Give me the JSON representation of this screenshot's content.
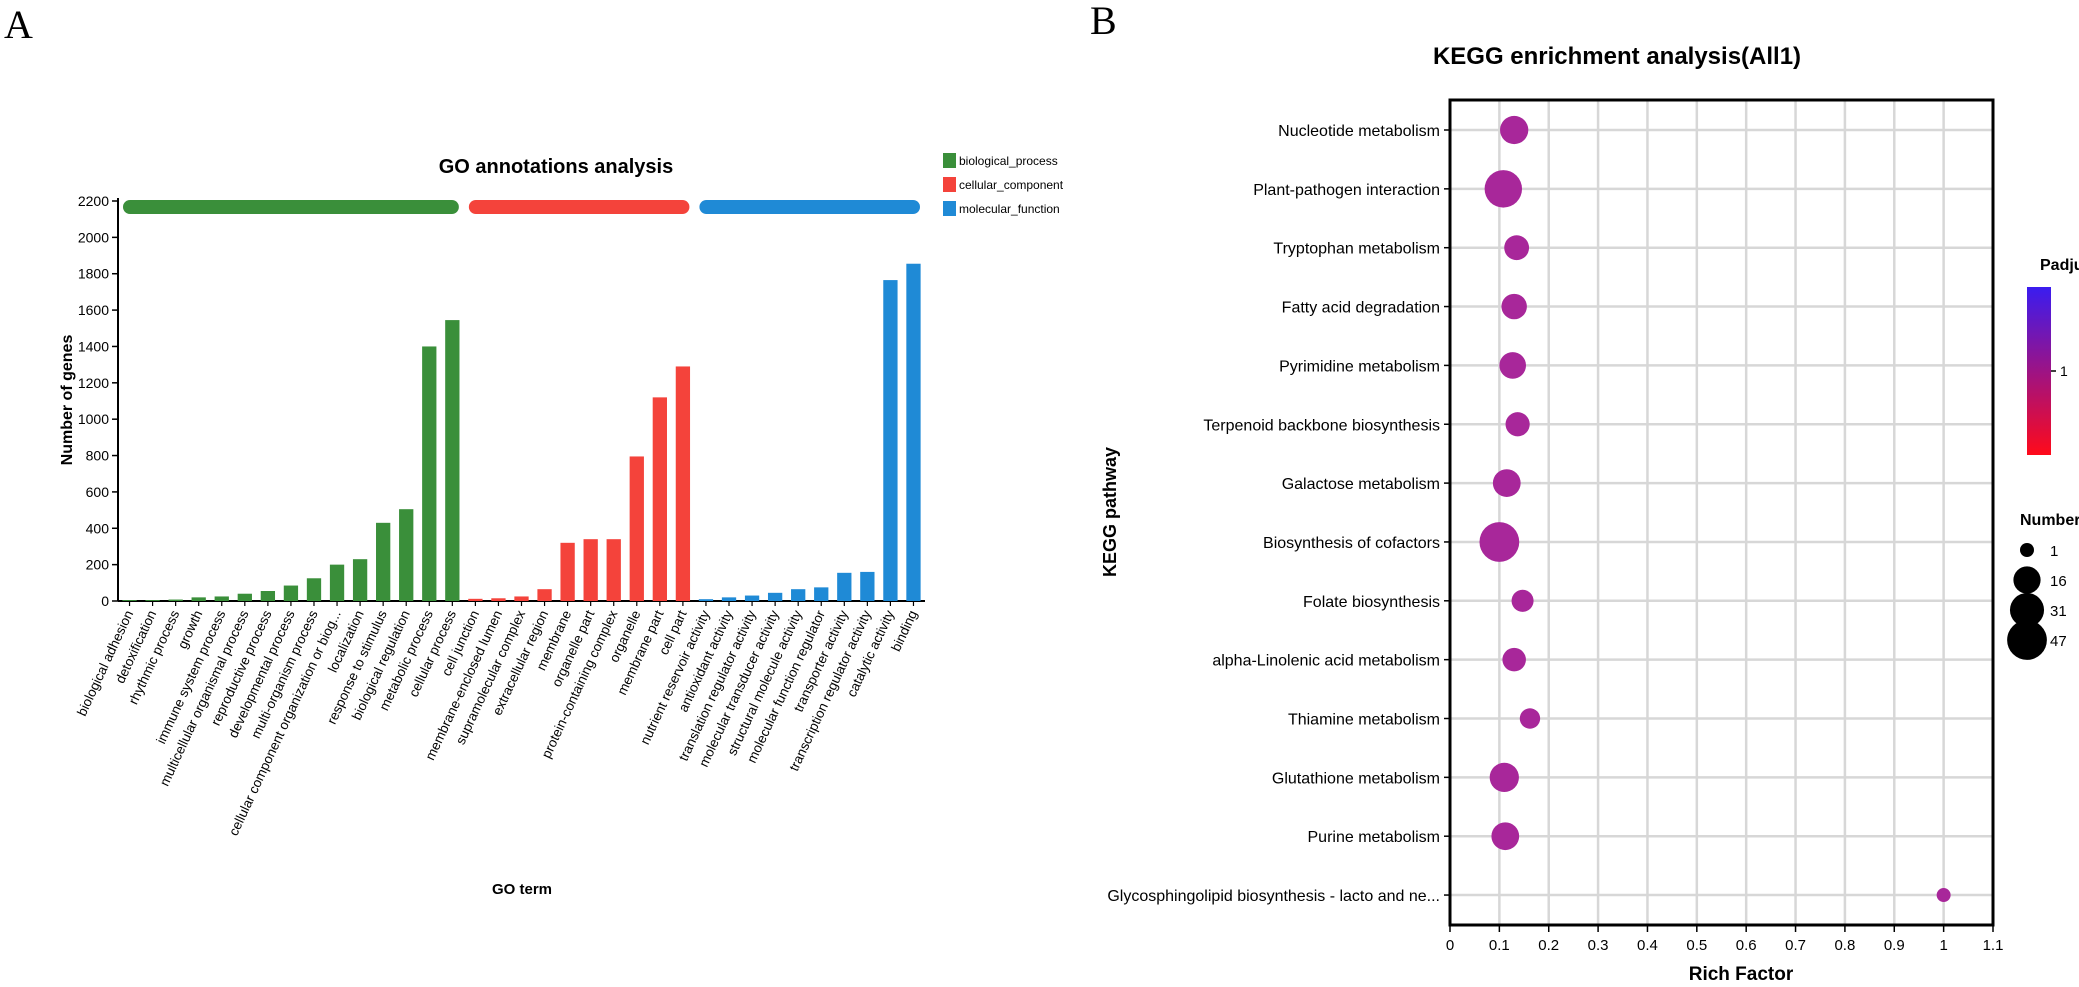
{
  "panel_labels": {
    "a": "A",
    "b": "B"
  },
  "colors": {
    "biological_process": "#3a8f3a",
    "cellular_component": "#f4433b",
    "molecular_function": "#1f8ad6",
    "bubble": "#a8279a",
    "grid": "#d7d7d7",
    "padjust_top": "#3a1cf0",
    "padjust_bottom": "#ff0a1a"
  },
  "chart_data": [
    {
      "type": "bar",
      "title": "GO annotations analysis",
      "xlabel": "GO term",
      "ylabel": "Number of genes",
      "ylim": [
        0,
        2200
      ],
      "yticks": [
        "0",
        "200",
        "400",
        "600",
        "800",
        "1000",
        "1200",
        "1400",
        "1600",
        "1800",
        "2000",
        "2200"
      ],
      "legend": [
        "biological_process",
        "cellular_component",
        "molecular_function"
      ],
      "legend_position": "top-right",
      "categories": [
        {
          "label": "biological adhesion",
          "value": 5,
          "group": 0
        },
        {
          "label": "detoxification",
          "value": 5,
          "group": 0
        },
        {
          "label": "rhythmic process",
          "value": 8,
          "group": 0
        },
        {
          "label": "growth",
          "value": 20,
          "group": 0
        },
        {
          "label": "immune system process",
          "value": 25,
          "group": 0
        },
        {
          "label": "multicellular organismal process",
          "value": 40,
          "group": 0
        },
        {
          "label": "reproductive process",
          "value": 55,
          "group": 0
        },
        {
          "label": "developmental process",
          "value": 85,
          "group": 0
        },
        {
          "label": "multi-organism process",
          "value": 125,
          "group": 0
        },
        {
          "label": "cellular component organization or biog...",
          "value": 200,
          "group": 0
        },
        {
          "label": "localization",
          "value": 230,
          "group": 0
        },
        {
          "label": "response to stimulus",
          "value": 430,
          "group": 0
        },
        {
          "label": "biological regulation",
          "value": 505,
          "group": 0
        },
        {
          "label": "metabolic process",
          "value": 1400,
          "group": 0
        },
        {
          "label": "cellular process",
          "value": 1545,
          "group": 0
        },
        {
          "label": "cell junction",
          "value": 12,
          "group": 1
        },
        {
          "label": "membrane-enclosed lumen",
          "value": 15,
          "group": 1
        },
        {
          "label": "supramolecular complex",
          "value": 25,
          "group": 1
        },
        {
          "label": "extracellular region",
          "value": 65,
          "group": 1
        },
        {
          "label": "membrane",
          "value": 320,
          "group": 1
        },
        {
          "label": "organelle part",
          "value": 340,
          "group": 1
        },
        {
          "label": "protein-containing complex",
          "value": 340,
          "group": 1
        },
        {
          "label": "organelle",
          "value": 795,
          "group": 1
        },
        {
          "label": "membrane part",
          "value": 1120,
          "group": 1
        },
        {
          "label": "cell part",
          "value": 1290,
          "group": 1
        },
        {
          "label": "nutrient reservoir activity",
          "value": 10,
          "group": 2
        },
        {
          "label": "antioxidant activity",
          "value": 20,
          "group": 2
        },
        {
          "label": "translation regulator activity",
          "value": 30,
          "group": 2
        },
        {
          "label": "molecular transducer activity",
          "value": 45,
          "group": 2
        },
        {
          "label": "structural molecule activity",
          "value": 65,
          "group": 2
        },
        {
          "label": "molecular function regulator",
          "value": 75,
          "group": 2
        },
        {
          "label": "transporter activity",
          "value": 155,
          "group": 2
        },
        {
          "label": "transcription regulator activity",
          "value": 160,
          "group": 2
        },
        {
          "label": "catalytic activity",
          "value": 1765,
          "group": 2
        },
        {
          "label": "binding",
          "value": 1855,
          "group": 2
        }
      ]
    },
    {
      "type": "scatter",
      "title": "KEGG enrichment analysis(All1)",
      "xlabel": "Rich Factor",
      "ylabel": "KEGG pathway",
      "xlim": [
        0,
        1.1
      ],
      "xticks": [
        "0",
        "0.1",
        "0.2",
        "0.3",
        "0.4",
        "0.5",
        "0.6",
        "0.7",
        "0.8",
        "0.9",
        "1",
        "1.1"
      ],
      "points": [
        {
          "pathway": "Nucleotide metabolism",
          "rich_factor": 0.13,
          "number": 18
        },
        {
          "pathway": "Plant-pathogen interaction",
          "rich_factor": 0.108,
          "number": 40
        },
        {
          "pathway": "Tryptophan metabolism",
          "rich_factor": 0.135,
          "number": 12
        },
        {
          "pathway": "Fatty acid degradation",
          "rich_factor": 0.13,
          "number": 13
        },
        {
          "pathway": "Pyrimidine metabolism",
          "rich_factor": 0.127,
          "number": 15
        },
        {
          "pathway": "Terpenoid backbone biosynthesis",
          "rich_factor": 0.137,
          "number": 11
        },
        {
          "pathway": "Galactose metabolism",
          "rich_factor": 0.115,
          "number": 17
        },
        {
          "pathway": "Biosynthesis of cofactors",
          "rich_factor": 0.1,
          "number": 47
        },
        {
          "pathway": "Folate biosynthesis",
          "rich_factor": 0.147,
          "number": 8
        },
        {
          "pathway": "alpha-Linolenic acid metabolism",
          "rich_factor": 0.13,
          "number": 10
        },
        {
          "pathway": "Thiamine metabolism",
          "rich_factor": 0.162,
          "number": 6
        },
        {
          "pathway": "Glutathione metabolism",
          "rich_factor": 0.11,
          "number": 20
        },
        {
          "pathway": "Purine metabolism",
          "rich_factor": 0.112,
          "number": 17
        },
        {
          "pathway": "Glycosphingolipid biosynthesis - lacto and ne...",
          "rich_factor": 1.0,
          "number": 1
        }
      ],
      "legend_padjust": {
        "title": "Padjust",
        "tick": "1"
      },
      "legend_number": {
        "title": "Number",
        "entries": [
          {
            "label": "1",
            "value": 1
          },
          {
            "label": "16",
            "value": 16
          },
          {
            "label": "31",
            "value": 31
          },
          {
            "label": "47",
            "value": 47
          }
        ]
      }
    }
  ]
}
